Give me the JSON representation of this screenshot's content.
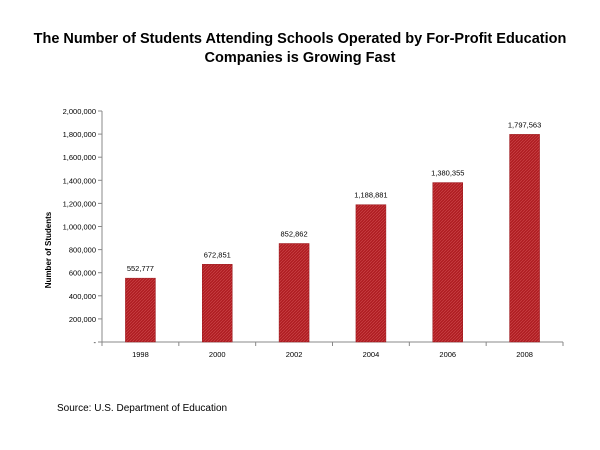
{
  "chart_data": {
    "type": "bar",
    "title_lines": [
      "The Number of Students Attending Schools Operated by For-Profit Education",
      "Companies is Growing Fast"
    ],
    "xlabel": "",
    "ylabel": "Number of Students",
    "categories": [
      "1998",
      "2000",
      "2002",
      "2004",
      "2006",
      "2008"
    ],
    "values": [
      552777,
      672851,
      852862,
      1188881,
      1380355,
      1797563
    ],
    "data_labels": [
      "552,777",
      "672,851",
      "852,862",
      "1,188,881",
      "1,380,355",
      "1,797,563"
    ],
    "ylim": [
      0,
      2000000
    ],
    "yticks": [
      0,
      200000,
      400000,
      600000,
      800000,
      1000000,
      1200000,
      1400000,
      1600000,
      1800000,
      2000000
    ],
    "ytick_labels": [
      "-",
      "200,000",
      "400,000",
      "600,000",
      "800,000",
      "1,000,000",
      "1,200,000",
      "1,400,000",
      "1,600,000",
      "1,800,000",
      "2,000,000"
    ],
    "grid": false,
    "legend": "none",
    "bar_color": "#b01e23",
    "bar_hatch_color": "#d04a4e"
  },
  "footer": {
    "source": "Source: U.S. Department of Education"
  }
}
